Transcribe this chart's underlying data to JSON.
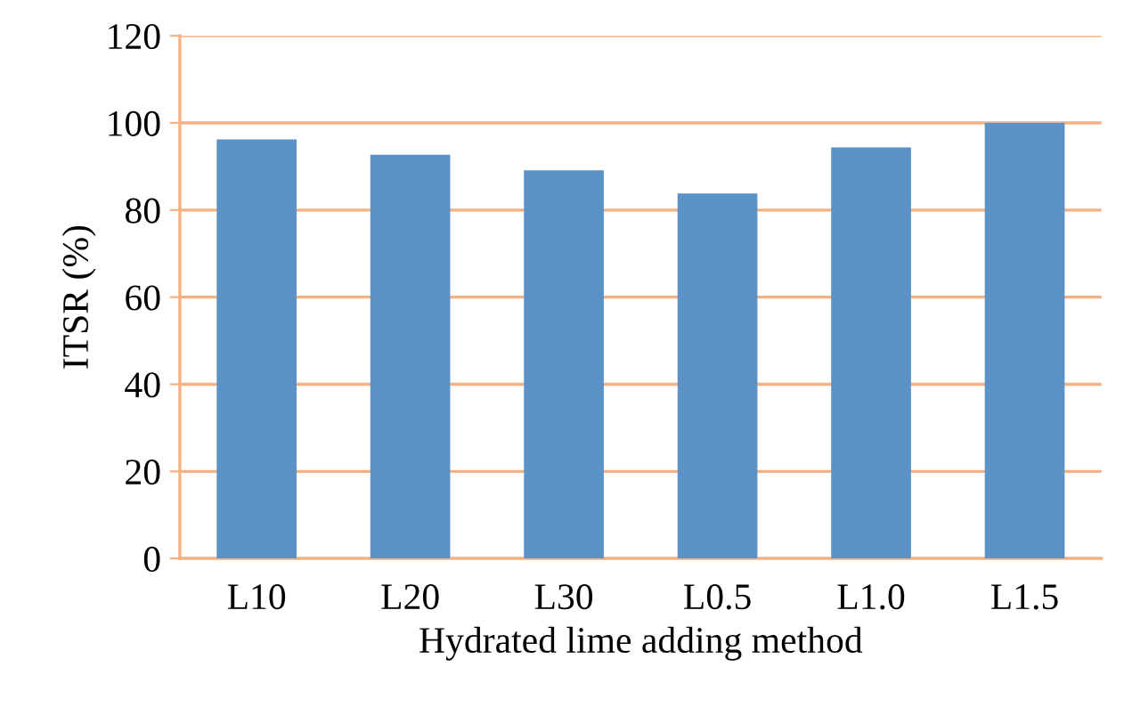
{
  "chart_data": {
    "type": "bar",
    "xlabel": "Hydrated lime adding method",
    "ylabel": "ITSR (%)",
    "categories": [
      "L10",
      "L20",
      "L30",
      "L0.5",
      "L1.0",
      "L1.5"
    ],
    "values": [
      96.2,
      92.7,
      89.1,
      83.8,
      94.4,
      100
    ],
    "color": "#5b93c8",
    "ylim": [
      0,
      120
    ],
    "yticks": [
      0,
      20,
      40,
      60,
      80,
      100,
      120
    ],
    "grid": "y"
  }
}
